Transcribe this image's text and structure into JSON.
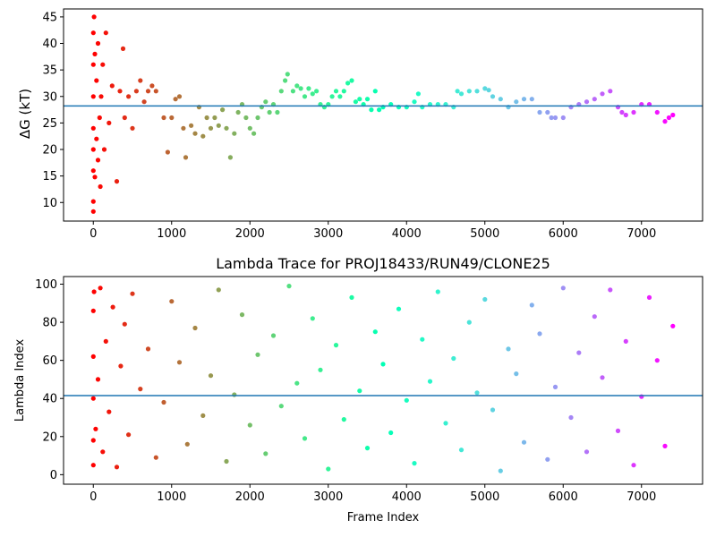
{
  "chart_data": [
    {
      "type": "scatter",
      "title": "",
      "xlabel": "",
      "ylabel": "ΔG (kT)",
      "xlim": [
        -380,
        7780
      ],
      "ylim": [
        6.5,
        46.5
      ],
      "xticks": [
        0,
        1000,
        2000,
        3000,
        4000,
        5000,
        6000,
        7000
      ],
      "yticks": [
        10,
        15,
        20,
        25,
        30,
        35,
        40,
        45
      ],
      "hline": 28.2,
      "hline_color": "#1f77b4",
      "colormap": "rainbow (red at frame 0 → violet at last frame)",
      "series": [
        {
          "points": [
            [
              0,
              8.3
            ],
            [
              0,
              10.2
            ],
            [
              0,
              16
            ],
            [
              0,
              20
            ],
            [
              0,
              24
            ],
            [
              0,
              30
            ],
            [
              0,
              36
            ],
            [
              0,
              42
            ],
            [
              10,
              45
            ],
            [
              20,
              14.8
            ],
            [
              20,
              38
            ],
            [
              40,
              22
            ],
            [
              40,
              33
            ],
            [
              60,
              18
            ],
            [
              60,
              40
            ],
            [
              80,
              26
            ],
            [
              90,
              13
            ],
            [
              100,
              30
            ],
            [
              120,
              36
            ],
            [
              140,
              20
            ],
            [
              160,
              42
            ],
            [
              200,
              25
            ],
            [
              240,
              32
            ],
            [
              300,
              14
            ],
            [
              340,
              31
            ],
            [
              380,
              39
            ],
            [
              400,
              26
            ],
            [
              450,
              30
            ],
            [
              500,
              24
            ],
            [
              550,
              31
            ],
            [
              600,
              33
            ],
            [
              650,
              29
            ],
            [
              700,
              31
            ],
            [
              750,
              32
            ],
            [
              800,
              31
            ],
            [
              900,
              26
            ],
            [
              950,
              19.5
            ],
            [
              1000,
              26
            ],
            [
              1050,
              29.5
            ],
            [
              1100,
              30
            ],
            [
              1150,
              24
            ],
            [
              1180,
              18.5
            ],
            [
              1250,
              24.5
            ],
            [
              1300,
              23
            ],
            [
              1350,
              28
            ],
            [
              1400,
              22.5
            ],
            [
              1450,
              26
            ],
            [
              1500,
              24
            ],
            [
              1550,
              26
            ],
            [
              1600,
              24.5
            ],
            [
              1650,
              27.5
            ],
            [
              1700,
              24
            ],
            [
              1750,
              18.5
            ],
            [
              1800,
              23
            ],
            [
              1850,
              27
            ],
            [
              1900,
              28.5
            ],
            [
              1950,
              26
            ],
            [
              2000,
              24
            ],
            [
              2050,
              23
            ],
            [
              2100,
              26
            ],
            [
              2150,
              28
            ],
            [
              2200,
              29
            ],
            [
              2250,
              27
            ],
            [
              2300,
              28.5
            ],
            [
              2350,
              27
            ],
            [
              2400,
              31
            ],
            [
              2450,
              33
            ],
            [
              2480,
              34.2
            ],
            [
              2550,
              31
            ],
            [
              2600,
              32
            ],
            [
              2650,
              31.5
            ],
            [
              2700,
              30
            ],
            [
              2750,
              31.5
            ],
            [
              2800,
              30.5
            ],
            [
              2850,
              31
            ],
            [
              2900,
              28.5
            ],
            [
              2950,
              28
            ],
            [
              3000,
              28.5
            ],
            [
              3050,
              30
            ],
            [
              3100,
              31
            ],
            [
              3150,
              30
            ],
            [
              3200,
              31
            ],
            [
              3250,
              32.5
            ],
            [
              3300,
              33
            ],
            [
              3350,
              29
            ],
            [
              3400,
              29.5
            ],
            [
              3450,
              28.5
            ],
            [
              3500,
              29.5
            ],
            [
              3550,
              27.5
            ],
            [
              3600,
              31
            ],
            [
              3650,
              27.5
            ],
            [
              3700,
              28
            ],
            [
              3800,
              28.5
            ],
            [
              3900,
              28
            ],
            [
              4000,
              28
            ],
            [
              4100,
              29
            ],
            [
              4150,
              30.5
            ],
            [
              4200,
              28
            ],
            [
              4300,
              28.5
            ],
            [
              4400,
              28.5
            ],
            [
              4500,
              28.5
            ],
            [
              4600,
              28
            ],
            [
              4650,
              31
            ],
            [
              4700,
              30.5
            ],
            [
              4800,
              31
            ],
            [
              4900,
              31
            ],
            [
              5000,
              31.5
            ],
            [
              5050,
              31.2
            ],
            [
              5100,
              30
            ],
            [
              5200,
              29.5
            ],
            [
              5300,
              28
            ],
            [
              5400,
              29
            ],
            [
              5500,
              29.5
            ],
            [
              5600,
              29.5
            ],
            [
              5700,
              27
            ],
            [
              5800,
              27
            ],
            [
              5850,
              26
            ],
            [
              5900,
              26
            ],
            [
              6000,
              26
            ],
            [
              6100,
              28
            ],
            [
              6200,
              28.5
            ],
            [
              6300,
              29
            ],
            [
              6400,
              29.5
            ],
            [
              6500,
              30.5
            ],
            [
              6600,
              31
            ],
            [
              6700,
              28
            ],
            [
              6750,
              27
            ],
            [
              6800,
              26.5
            ],
            [
              6900,
              27
            ],
            [
              7000,
              28.5
            ],
            [
              7100,
              28.5
            ],
            [
              7200,
              27
            ],
            [
              7300,
              25.3
            ],
            [
              7350,
              26
            ],
            [
              7400,
              26.5
            ]
          ]
        }
      ]
    },
    {
      "type": "scatter",
      "title": "Lambda Trace for PROJ18433/RUN49/CLONE25",
      "xlabel": "Frame Index",
      "ylabel": "Lambda Index",
      "xlim": [
        -380,
        7780
      ],
      "ylim": [
        -5,
        104
      ],
      "xticks": [
        0,
        1000,
        2000,
        3000,
        4000,
        5000,
        6000,
        7000
      ],
      "yticks": [
        0,
        20,
        40,
        60,
        80,
        100
      ],
      "hline": 41.5,
      "hline_color": "#1f77b4",
      "colormap": "rainbow (red at frame 0 → violet at last frame)",
      "series": [
        {
          "points": [
            [
              0,
              5
            ],
            [
              0,
              18
            ],
            [
              0,
              40
            ],
            [
              0,
              62
            ],
            [
              0,
              86
            ],
            [
              10,
              96
            ],
            [
              30,
              24
            ],
            [
              60,
              50
            ],
            [
              90,
              98
            ],
            [
              120,
              12
            ],
            [
              160,
              70
            ],
            [
              200,
              33
            ],
            [
              250,
              88
            ],
            [
              300,
              4
            ],
            [
              350,
              57
            ],
            [
              400,
              79
            ],
            [
              450,
              21
            ],
            [
              500,
              95
            ],
            [
              600,
              45
            ],
            [
              700,
              66
            ],
            [
              800,
              9
            ],
            [
              900,
              38
            ],
            [
              1000,
              91
            ],
            [
              1100,
              59
            ],
            [
              1200,
              16
            ],
            [
              1300,
              77
            ],
            [
              1400,
              31
            ],
            [
              1500,
              52
            ],
            [
              1600,
              97
            ],
            [
              1700,
              7
            ],
            [
              1800,
              42
            ],
            [
              1900,
              84
            ],
            [
              2000,
              26
            ],
            [
              2100,
              63
            ],
            [
              2200,
              11
            ],
            [
              2300,
              73
            ],
            [
              2400,
              36
            ],
            [
              2500,
              99
            ],
            [
              2600,
              48
            ],
            [
              2700,
              19
            ],
            [
              2800,
              82
            ],
            [
              2900,
              55
            ],
            [
              3000,
              3
            ],
            [
              3100,
              68
            ],
            [
              3200,
              29
            ],
            [
              3300,
              93
            ],
            [
              3400,
              44
            ],
            [
              3500,
              14
            ],
            [
              3600,
              75
            ],
            [
              3700,
              58
            ],
            [
              3800,
              22
            ],
            [
              3900,
              87
            ],
            [
              4000,
              39
            ],
            [
              4100,
              6
            ],
            [
              4200,
              71
            ],
            [
              4300,
              49
            ],
            [
              4400,
              96
            ],
            [
              4500,
              27
            ],
            [
              4600,
              61
            ],
            [
              4700,
              13
            ],
            [
              4800,
              80
            ],
            [
              4900,
              43
            ],
            [
              5000,
              92
            ],
            [
              5100,
              34
            ],
            [
              5200,
              2
            ],
            [
              5300,
              66
            ],
            [
              5400,
              53
            ],
            [
              5500,
              17
            ],
            [
              5600,
              89
            ],
            [
              5700,
              74
            ],
            [
              5800,
              8
            ],
            [
              5900,
              46
            ],
            [
              6000,
              98
            ],
            [
              6100,
              30
            ],
            [
              6200,
              64
            ],
            [
              6300,
              12
            ],
            [
              6400,
              83
            ],
            [
              6500,
              51
            ],
            [
              6600,
              97
            ],
            [
              6700,
              23
            ],
            [
              6800,
              70
            ],
            [
              6900,
              5
            ],
            [
              7000,
              41
            ],
            [
              7100,
              93
            ],
            [
              7200,
              60
            ],
            [
              7300,
              15
            ],
            [
              7400,
              78
            ]
          ]
        }
      ]
    }
  ]
}
